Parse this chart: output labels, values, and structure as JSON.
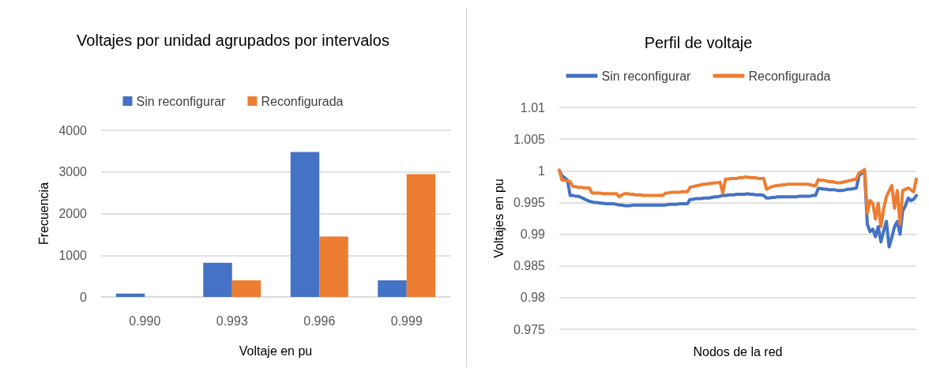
{
  "chart_data": [
    {
      "type": "bar",
      "title": "Voltajes por unidad agrupados por intervalos",
      "xlabel": "Voltaje en pu",
      "ylabel": "Frecuencia",
      "categories": [
        "0.990",
        "0.993",
        "0.996",
        "0.999"
      ],
      "series": [
        {
          "name": "Sin reconfigurar",
          "color": "#4472c4",
          "values": [
            80,
            820,
            3480,
            400
          ]
        },
        {
          "name": "Reconfigurada",
          "color": "#ed7d31",
          "values": [
            0,
            400,
            1450,
            2950
          ]
        }
      ],
      "ylim": [
        0,
        4000
      ],
      "yticks": [
        0,
        1000,
        2000,
        3000,
        4000
      ],
      "grid": "y",
      "legend": "top"
    },
    {
      "type": "line",
      "title": "Perfil de voltaje",
      "xlabel": "Nodos de la red",
      "ylabel": "Voltajes en pu",
      "categories": [
        null,
        null,
        null,
        null,
        null,
        null,
        null,
        null,
        null,
        null,
        null,
        null,
        null,
        null,
        null,
        null,
        null,
        null,
        null,
        null,
        null,
        null,
        null,
        null,
        null,
        null,
        null,
        null,
        null,
        null,
        null,
        null,
        null,
        null,
        null,
        null,
        null,
        null,
        null,
        null,
        null,
        null,
        null,
        null,
        null,
        null,
        null,
        null,
        null,
        null,
        null,
        null,
        null,
        null,
        null,
        null,
        null,
        null,
        null,
        null,
        null,
        null,
        null,
        null,
        null,
        null,
        null,
        null,
        null,
        null,
        null,
        null,
        null,
        null,
        null,
        null,
        null,
        null,
        null,
        null,
        null,
        null,
        null,
        null,
        null,
        null,
        null,
        null,
        null,
        null,
        null,
        null,
        null,
        null,
        null,
        null,
        null,
        null,
        null,
        null,
        null,
        null,
        null,
        null,
        null,
        null,
        null,
        null,
        null,
        null,
        null,
        null,
        null,
        null,
        null,
        null,
        null,
        null,
        null,
        null,
        null,
        null,
        null,
        null,
        null,
        null,
        null,
        null,
        null,
        null,
        null,
        null
      ],
      "ylim": [
        0.975,
        1.01
      ],
      "yticks": [
        0.975,
        0.98,
        0.985,
        0.99,
        0.995,
        1,
        1.005,
        1.01
      ],
      "grid": "y",
      "legend": "top",
      "marker": "none",
      "line_style": "solid",
      "series": [
        {
          "name": "Sin reconfigurar",
          "color": "#4472c4",
          "values": [
            1.0001,
            0.9992,
            0.9989,
            0.9985,
            0.9961,
            0.9961,
            0.996,
            0.996,
            0.9958,
            0.9956,
            0.9954,
            0.9952,
            0.9951,
            0.995,
            0.995,
            0.9949,
            0.9949,
            0.9948,
            0.9948,
            0.9948,
            0.9948,
            0.9947,
            0.9946,
            0.9946,
            0.9945,
            0.9945,
            0.9945,
            0.9946,
            0.9946,
            0.9946,
            0.9946,
            0.9946,
            0.9946,
            0.9946,
            0.9946,
            0.9946,
            0.9946,
            0.9946,
            0.9946,
            0.9946,
            0.9947,
            0.9947,
            0.9947,
            0.9947,
            0.9948,
            0.9948,
            0.9948,
            0.9948,
            0.9955,
            0.9955,
            0.9956,
            0.9956,
            0.9956,
            0.9957,
            0.9957,
            0.9957,
            0.9958,
            0.9959,
            0.9959,
            0.996,
            0.9961,
            0.9961,
            0.9962,
            0.9962,
            0.9962,
            0.9963,
            0.9963,
            0.9963,
            0.9963,
            0.9964,
            0.9963,
            0.9963,
            0.9962,
            0.9962,
            0.9962,
            0.9961,
            0.9957,
            0.9957,
            0.9958,
            0.9958,
            0.9959,
            0.9959,
            0.9959,
            0.9959,
            0.9959,
            0.9959,
            0.9959,
            0.9959,
            0.996,
            0.996,
            0.996,
            0.996,
            0.996,
            0.9961,
            0.9961,
            0.9972,
            0.9972,
            0.9971,
            0.9971,
            0.997,
            0.997,
            0.997,
            0.9969,
            0.9969,
            0.9969,
            0.997,
            0.9971,
            0.9971,
            0.9972,
            0.9973,
            0.9993,
            0.9996,
            0.9999,
            0.9916,
            0.9904,
            0.9908,
            0.9896,
            0.9912,
            0.9888,
            0.9905,
            0.992,
            0.988,
            0.9895,
            0.9912,
            0.992,
            0.99,
            0.9937,
            0.9945,
            0.9957,
            0.9953,
            0.9955,
            0.9961
          ]
        },
        {
          "name": "Reconfigurada",
          "color": "#ed7d31",
          "values": [
            1.0001,
            0.9985,
            0.9985,
            0.9984,
            0.9983,
            0.9975,
            0.9975,
            0.9974,
            0.9974,
            0.9973,
            0.9973,
            0.9973,
            0.9965,
            0.9965,
            0.9965,
            0.9965,
            0.9964,
            0.9964,
            0.9964,
            0.9964,
            0.9964,
            0.9964,
            0.9959,
            0.9962,
            0.9964,
            0.9964,
            0.9963,
            0.9963,
            0.9962,
            0.9962,
            0.9962,
            0.9961,
            0.9961,
            0.9961,
            0.9961,
            0.9961,
            0.9961,
            0.9961,
            0.9961,
            0.9965,
            0.9965,
            0.9966,
            0.9966,
            0.9966,
            0.9966,
            0.9967,
            0.9967,
            0.9967,
            0.9974,
            0.9975,
            0.9976,
            0.9977,
            0.9978,
            0.9979,
            0.9979,
            0.998,
            0.998,
            0.9981,
            0.9981,
            0.9982,
            0.9965,
            0.9987,
            0.9987,
            0.9988,
            0.9988,
            0.9988,
            0.9989,
            0.9989,
            0.999,
            0.999,
            0.9989,
            0.9989,
            0.9989,
            0.9988,
            0.9988,
            0.9988,
            0.9971,
            0.9973,
            0.9975,
            0.9976,
            0.9977,
            0.9977,
            0.9978,
            0.9978,
            0.9979,
            0.9979,
            0.9979,
            0.9979,
            0.9979,
            0.9979,
            0.9979,
            0.9979,
            0.9978,
            0.9977,
            0.9976,
            0.9986,
            0.9985,
            0.9985,
            0.9984,
            0.9983,
            0.9983,
            0.9982,
            0.9981,
            0.9981,
            0.9982,
            0.9983,
            0.9984,
            0.9985,
            0.9986,
            0.9987,
            0.9997,
            0.9999,
            1.0002,
            0.9933,
            0.9953,
            0.9949,
            0.9924,
            0.9949,
            0.9912,
            0.994,
            0.9959,
            0.9968,
            0.9977,
            0.9941,
            0.9969,
            0.9916,
            0.9969,
            0.9971,
            0.9973,
            0.997,
            0.9967,
            0.9987
          ]
        }
      ]
    }
  ]
}
